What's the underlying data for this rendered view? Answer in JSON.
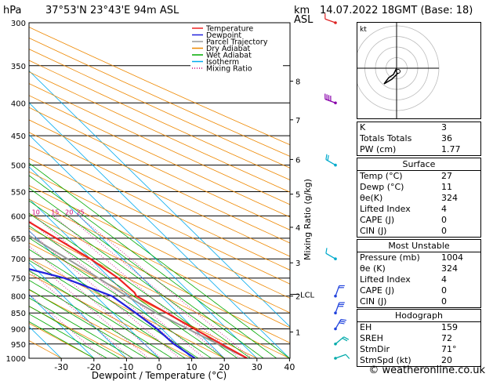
{
  "header": {
    "hpa_label": "hPa",
    "location": "37°53'N  23°43'E  94m  ASL",
    "km_label": "km",
    "asl_label": "ASL",
    "datetime": "14.07.2022  18GMT  (Base: 18)"
  },
  "legend": [
    {
      "label": "Temperature",
      "color": "#ee2222",
      "style": "solid"
    },
    {
      "label": "Dewpoint",
      "color": "#2222dd",
      "style": "solid"
    },
    {
      "label": "Parcel Trajectory",
      "color": "#999999",
      "style": "solid"
    },
    {
      "label": "Dry Adiabat",
      "color": "#ee8800",
      "style": "solid"
    },
    {
      "label": "Wet Adiabat",
      "color": "#00aa00",
      "style": "solid"
    },
    {
      "label": "Isotherm",
      "color": "#00aaee",
      "style": "solid"
    },
    {
      "label": "Mixing Ratio",
      "color": "#cc0077",
      "style": "dotted"
    }
  ],
  "chart_data": {
    "type": "skew-T log-P sounding",
    "xlabel": "Dewpoint / Temperature (°C)",
    "ylabel_right": "Mixing Ratio (g/kg)",
    "pressure_ticks": [
      300,
      350,
      400,
      450,
      500,
      550,
      600,
      650,
      700,
      750,
      800,
      850,
      900,
      950,
      1000
    ],
    "temperature_ticks": [
      -30,
      -20,
      -10,
      0,
      10,
      20,
      30,
      40
    ],
    "xlim": [
      -40,
      40
    ],
    "ylim": [
      1000,
      300
    ],
    "km_ticks": [
      {
        "km": "1",
        "p": 910
      },
      {
        "km": "2",
        "p": 800
      },
      {
        "km": "3",
        "p": 710
      },
      {
        "km": "4",
        "p": 625
      },
      {
        "km": "5",
        "p": 555
      },
      {
        "km": "6",
        "p": 490
      },
      {
        "km": "7",
        "p": 425
      },
      {
        "km": "8",
        "p": 370
      }
    ],
    "lcl": {
      "label": "LCL",
      "p": 795
    },
    "mixing_ratio_lines": [
      {
        "label": "1",
        "w": 1
      },
      {
        "label": "2",
        "w": 2
      },
      {
        "label": "3",
        "w": 3
      },
      {
        "label": "4",
        "w": 4
      },
      {
        "label": "6",
        "w": 6
      },
      {
        "label": "8",
        "w": 8
      },
      {
        "label": "10",
        "w": 10
      },
      {
        "label": "15",
        "w": 15
      },
      {
        "label": "20",
        "w": 20
      },
      {
        "label": "25",
        "w": 25
      }
    ],
    "mixing_label_p": 600,
    "temperature": {
      "p": [
        1000,
        950,
        900,
        850,
        800,
        790,
        750,
        700,
        650,
        600,
        550,
        500,
        450,
        400,
        350,
        300
      ],
      "t": [
        27,
        23.5,
        20,
        16.5,
        12.5,
        13,
        12.5,
        10,
        6,
        1.5,
        -3,
        -8.5,
        -15,
        -23,
        -32,
        -42
      ]
    },
    "dewpoint": {
      "p": [
        1000,
        950,
        900,
        850,
        800,
        750,
        700,
        650,
        600,
        550,
        500,
        450,
        400,
        350,
        300
      ],
      "t": [
        11,
        9,
        8.5,
        7,
        5,
        -4,
        -21,
        -24,
        -12,
        -14,
        -31,
        -38,
        -42,
        -51,
        -59
      ]
    },
    "parcel": {
      "p": [
        1000,
        950,
        900,
        850,
        800,
        750,
        700,
        650,
        600,
        550,
        500,
        450,
        400,
        350,
        300
      ],
      "t": [
        27,
        22.5,
        18,
        13.2,
        9.5,
        6.5,
        3,
        -1,
        -5.5,
        -10,
        -16,
        -22.5,
        -29.5,
        -38,
        -48
      ]
    },
    "wind_barbs": [
      {
        "p": 300,
        "speed": 10,
        "dir": 290,
        "color": "#dd2222"
      },
      {
        "p": 400,
        "speed": 35,
        "dir": 290,
        "color": "#8800aa"
      },
      {
        "p": 500,
        "speed": 15,
        "dir": 300,
        "color": "#00aacc"
      },
      {
        "p": 700,
        "speed": 10,
        "dir": 300,
        "color": "#00aacc"
      },
      {
        "p": 800,
        "speed": 20,
        "dir": 20,
        "color": "#2244dd"
      },
      {
        "p": 850,
        "speed": 25,
        "dir": 20,
        "color": "#2244dd"
      },
      {
        "p": 900,
        "speed": 25,
        "dir": 30,
        "color": "#2244dd"
      },
      {
        "p": 950,
        "speed": 20,
        "dir": 50,
        "color": "#00aaaa"
      },
      {
        "p": 1000,
        "speed": 10,
        "dir": 70,
        "color": "#00aaaa"
      }
    ],
    "hodograph_label": "kt"
  },
  "indices": {
    "basic": [
      {
        "label": "K",
        "value": "3"
      },
      {
        "label": "Totals Totals",
        "value": "36"
      },
      {
        "label": "PW (cm)",
        "value": "1.77"
      }
    ],
    "surface_title": "Surface",
    "surface": [
      {
        "label": "Temp (°C)",
        "value": "27"
      },
      {
        "label": "Dewp (°C)",
        "value": "11"
      },
      {
        "label": "θe(K)",
        "value": "324"
      },
      {
        "label": "Lifted Index",
        "value": "4"
      },
      {
        "label": "CAPE (J)",
        "value": "0"
      },
      {
        "label": "CIN (J)",
        "value": "0"
      }
    ],
    "unstable_title": "Most Unstable",
    "unstable": [
      {
        "label": "Pressure (mb)",
        "value": "1004"
      },
      {
        "label": "θe (K)",
        "value": "324"
      },
      {
        "label": "Lifted Index",
        "value": "4"
      },
      {
        "label": "CAPE (J)",
        "value": "0"
      },
      {
        "label": "CIN (J)",
        "value": "0"
      }
    ],
    "hodograph_title": "Hodograph",
    "hodograph": [
      {
        "label": "EH",
        "value": "159"
      },
      {
        "label": "SREH",
        "value": "72"
      },
      {
        "label": "StmDir",
        "value": "71°"
      },
      {
        "label": "StmSpd (kt)",
        "value": "20"
      }
    ]
  },
  "copyright": "© weatheronline.co.uk"
}
